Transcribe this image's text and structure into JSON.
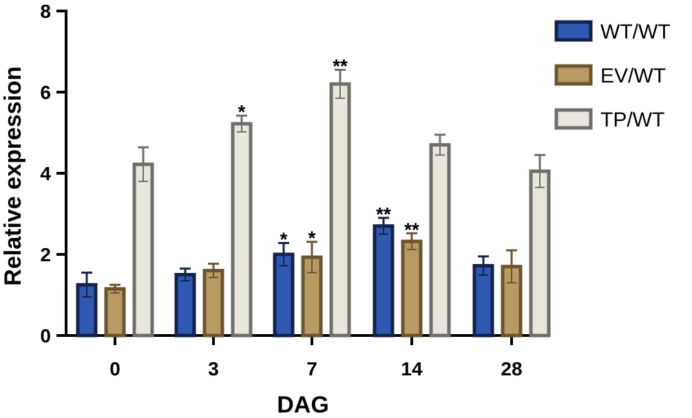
{
  "chart_data": {
    "type": "bar",
    "title": "",
    "xlabel": "DAG",
    "ylabel": "Relative expression",
    "ylim": [
      0,
      8
    ],
    "yticks": [
      0,
      2,
      4,
      6,
      8
    ],
    "categories": [
      "0",
      "3",
      "7",
      "14",
      "28"
    ],
    "legend_position": "top-right",
    "series": [
      {
        "name": "WT/WT",
        "fill": "#2f59b1",
        "stroke": "#13224a",
        "values": [
          1.25,
          1.5,
          2.0,
          2.7,
          1.72
        ],
        "errors": [
          0.3,
          0.15,
          0.28,
          0.2,
          0.23
        ],
        "significance": [
          "",
          "",
          "*",
          "**",
          ""
        ]
      },
      {
        "name": "EV/WT",
        "fill": "#b99a62",
        "stroke": "#6b5430",
        "values": [
          1.15,
          1.6,
          1.93,
          2.32,
          1.7
        ],
        "errors": [
          0.1,
          0.17,
          0.38,
          0.2,
          0.4
        ],
        "significance": [
          "",
          "",
          "*",
          "**",
          ""
        ]
      },
      {
        "name": "TP/WT",
        "fill": "#e9e7dc",
        "stroke": "#6e6e6a",
        "values": [
          4.22,
          5.22,
          6.2,
          4.7,
          4.05
        ],
        "errors": [
          0.42,
          0.2,
          0.35,
          0.25,
          0.4
        ],
        "significance": [
          "",
          "*",
          "**",
          "",
          ""
        ]
      }
    ]
  }
}
